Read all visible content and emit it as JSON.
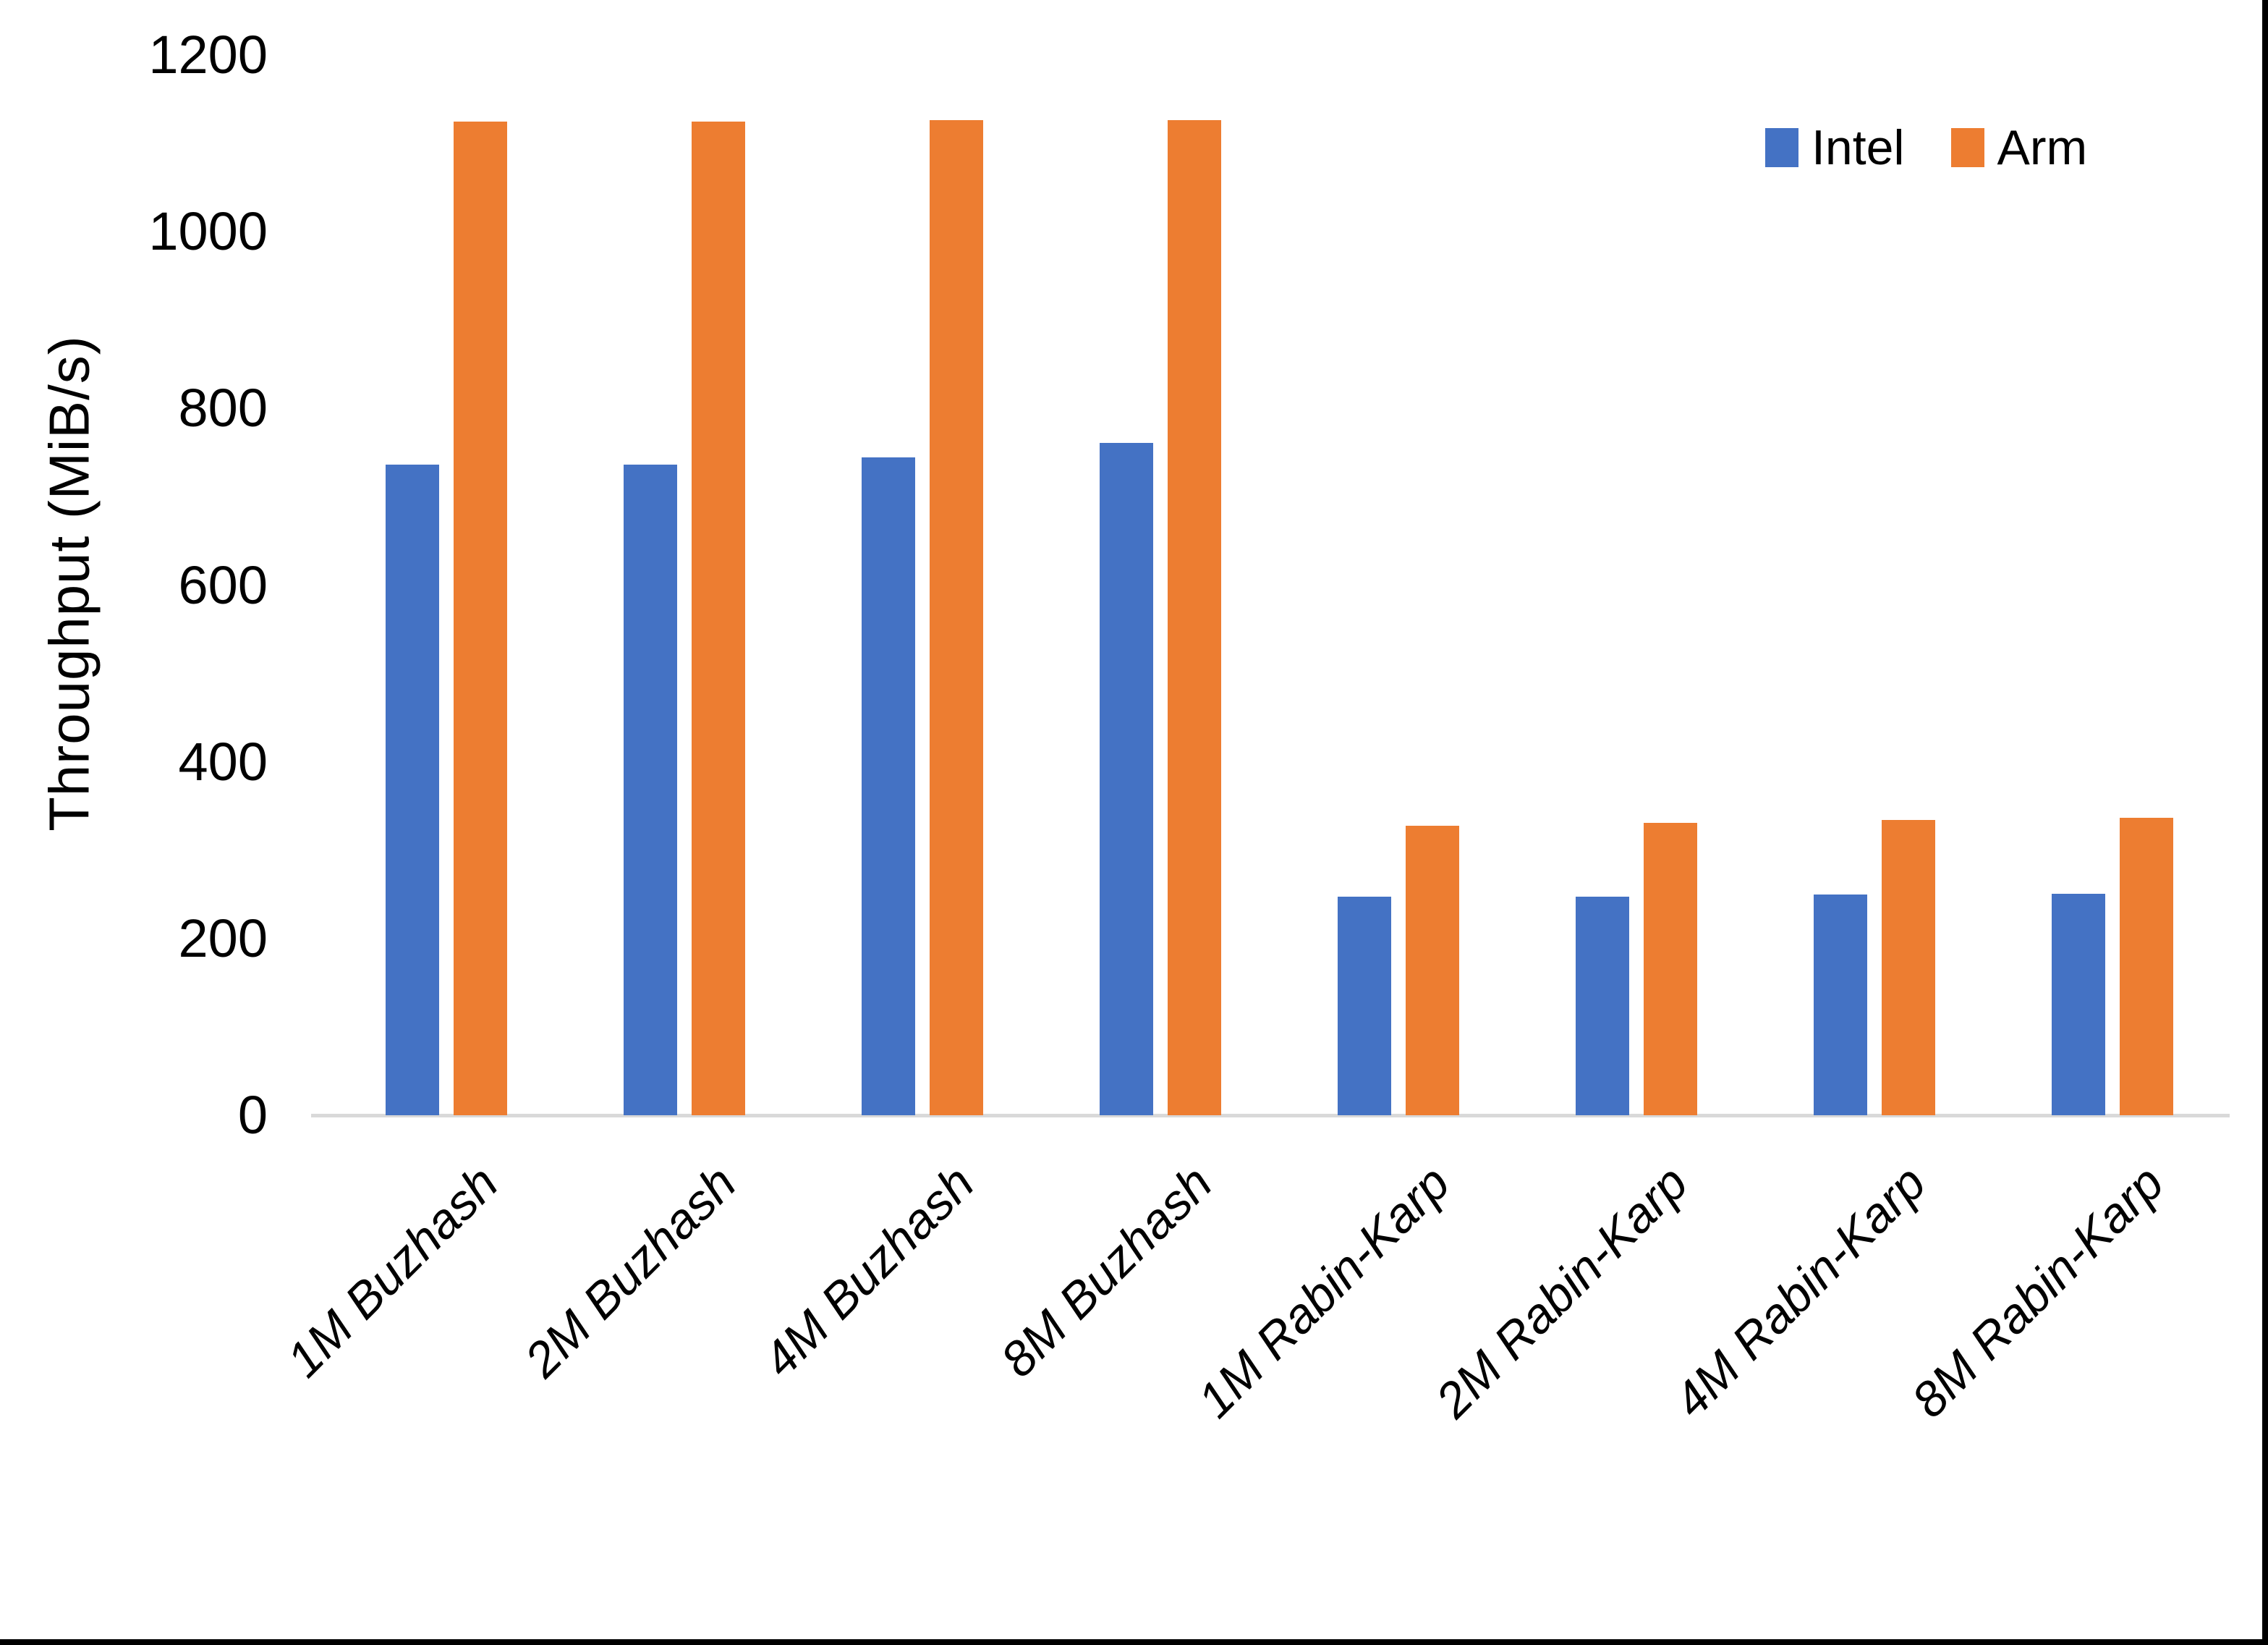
{
  "chart_data": {
    "type": "bar",
    "title": "",
    "xlabel": "",
    "ylabel": "Throughput (MiB/s)",
    "ylim": [
      0,
      1200
    ],
    "yticks": [
      0,
      200,
      400,
      600,
      800,
      1000,
      1200
    ],
    "grid": false,
    "legend_position": "top-right",
    "categories": [
      "1M Buzhash",
      "2M Buzhash",
      "4M Buzhash",
      "8M Buzhash",
      "1M Rabin-Karp",
      "2M Rabin-Karp",
      "4M Rabin-Karp",
      "8M Rabin-Karp"
    ],
    "series": [
      {
        "name": "Intel",
        "color": "#4472C4",
        "values": [
          736,
          736,
          745,
          761,
          247,
          247,
          250,
          251
        ]
      },
      {
        "name": "Arm",
        "color": "#ED7D31",
        "values": [
          1125,
          1125,
          1126,
          1126,
          328,
          331,
          334,
          337
        ]
      }
    ]
  },
  "colors": {
    "background": "#FFFFFF",
    "axis_line": "#D9D9D9",
    "text": "#000000",
    "border": "#000000"
  }
}
